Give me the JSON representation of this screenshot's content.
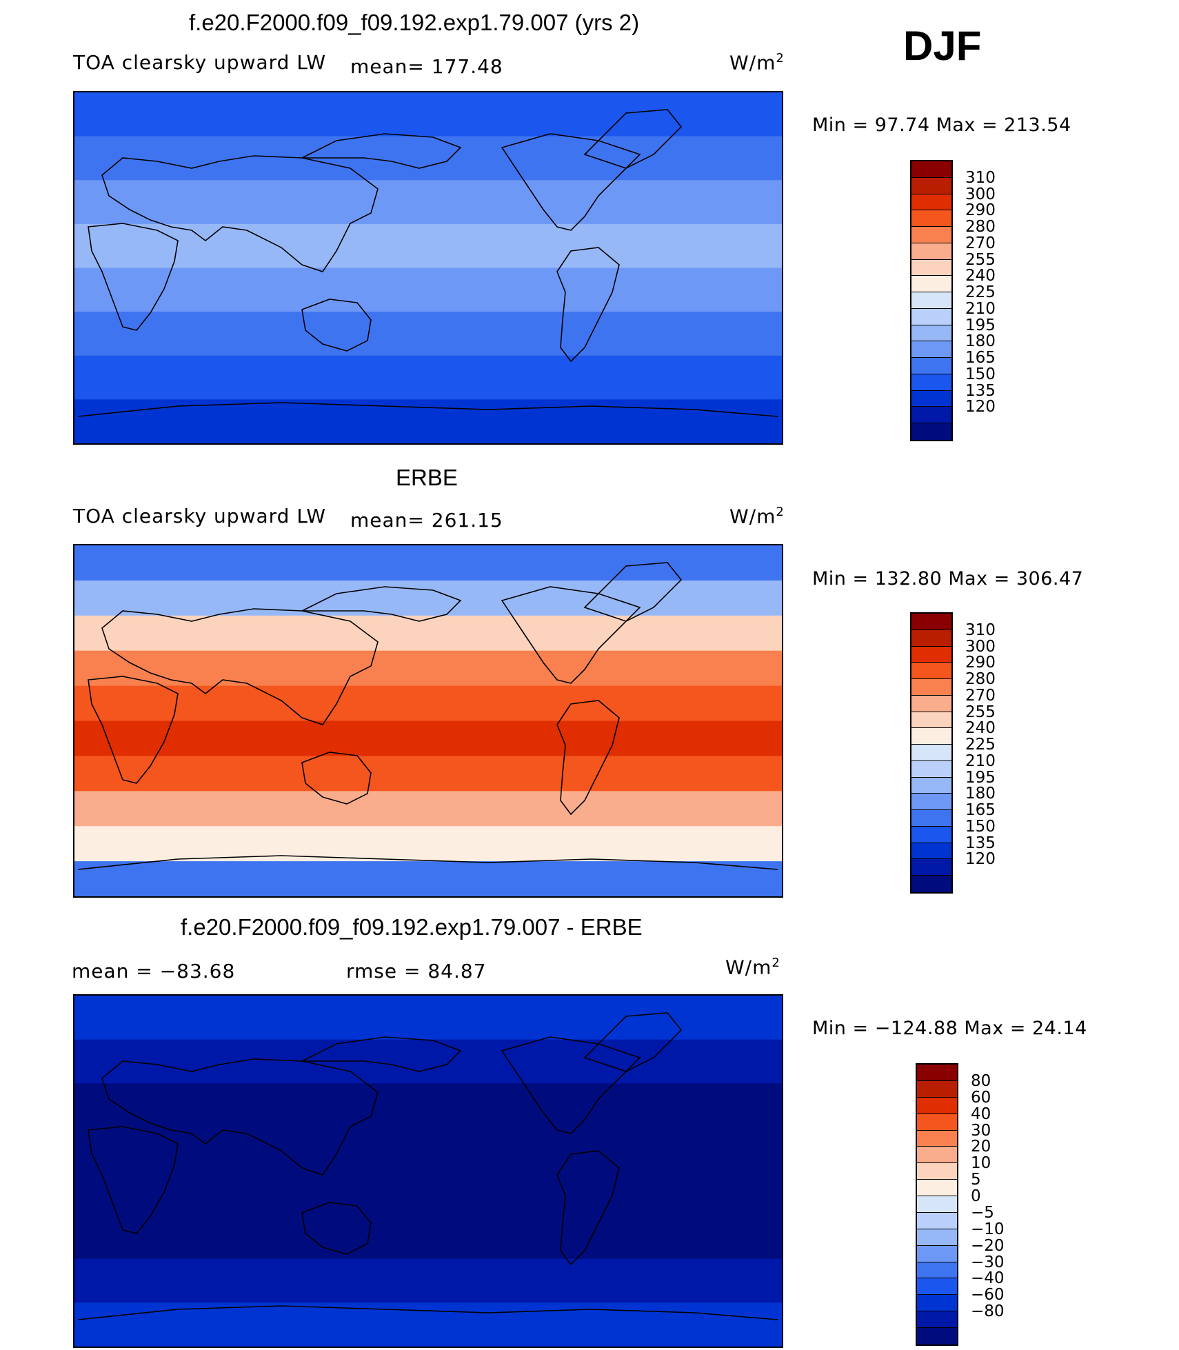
{
  "header": {
    "season": "DJF"
  },
  "colors": {
    "scale": [
      "#000c7d",
      "#0018a8",
      "#0034d2",
      "#1b56ee",
      "#3f74f0",
      "#6e98f6",
      "#97b8f7",
      "#bad0fa",
      "#d6e6f8",
      "#fdeee2",
      "#fcd3bd",
      "#f9ad8d",
      "#f8814f",
      "#f5561e",
      "#e02e00",
      "#b91e00",
      "#8a0000"
    ]
  },
  "panels": [
    {
      "id": "model",
      "title": "f.e20.F2000.f09_f09.192.exp1.79.007 (yrs 2)",
      "variable": "TOA clearsky upward LW",
      "mean": "mean= 177.48",
      "units": "W/m",
      "units_sup": "2",
      "minmax": "Min =   97.74 Max = 213.54",
      "colorbar_ticks": [
        "310",
        "300",
        "290",
        "280",
        "270",
        "255",
        "240",
        "225",
        "210",
        "195",
        "180",
        "165",
        "150",
        "135",
        "120"
      ],
      "map": {
        "bands": [
          "#1b56ee",
          "#3f74f0",
          "#6e98f6",
          "#97b8f7",
          "#6e98f6",
          "#3f74f0",
          "#1b56ee",
          "#0034d2"
        ]
      }
    },
    {
      "id": "obs",
      "title": "ERBE",
      "variable": "TOA clearsky upward LW",
      "mean": "mean= 261.15",
      "units": "W/m",
      "units_sup": "2",
      "minmax": "Min = 132.80 Max = 306.47",
      "colorbar_ticks": [
        "310",
        "300",
        "290",
        "280",
        "270",
        "255",
        "240",
        "225",
        "210",
        "195",
        "180",
        "165",
        "150",
        "135",
        "120"
      ],
      "map": {
        "bands": [
          "#3f74f0",
          "#97b8f7",
          "#fcd3bd",
          "#f8814f",
          "#f5561e",
          "#e02e00",
          "#f5561e",
          "#f9ad8d",
          "#fdeee2",
          "#3f74f0"
        ]
      }
    },
    {
      "id": "diff",
      "title": "f.e20.F2000.f09_f09.192.exp1.79.007 - ERBE",
      "mean": "mean = −83.68",
      "rmse": "rmse =   84.87",
      "units": "W/m",
      "units_sup": "2",
      "minmax": "Min = −124.88 Max =   24.14",
      "colorbar_ticks": [
        "80",
        "60",
        "40",
        "30",
        "20",
        "10",
        "5",
        "0",
        "−5",
        "−10",
        "−20",
        "−30",
        "−40",
        "−60",
        "−80"
      ],
      "map": {
        "bands": [
          "#0034d2",
          "#0018a8",
          "#000c7d",
          "#000c7d",
          "#000c7d",
          "#000c7d",
          "#0018a8",
          "#0034d2"
        ]
      }
    }
  ]
}
